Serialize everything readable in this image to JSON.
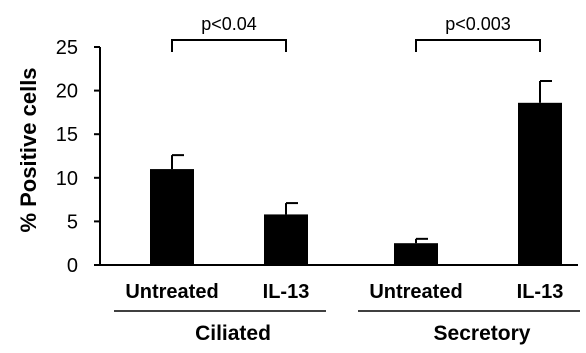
{
  "chart_data": {
    "type": "bar",
    "ylabel": "% Positive cells",
    "ylim": [
      0,
      25
    ],
    "yticks": [
      0,
      5,
      10,
      15,
      20,
      25
    ],
    "grid": false,
    "categories": [
      "Untreated",
      "IL-13",
      "Untreated",
      "IL-13"
    ],
    "values": [
      11.0,
      5.8,
      2.5,
      18.6
    ],
    "errors": [
      1.6,
      1.3,
      0.5,
      2.5
    ],
    "groups": [
      {
        "label": "Ciliated",
        "members": [
          0,
          1
        ]
      },
      {
        "label": "Secretory",
        "members": [
          2,
          3
        ]
      }
    ],
    "significance": [
      {
        "label": "p<0.04",
        "between": [
          0,
          1
        ]
      },
      {
        "label": "p<0.003",
        "between": [
          2,
          3
        ]
      }
    ],
    "bar_color": "#000000"
  }
}
